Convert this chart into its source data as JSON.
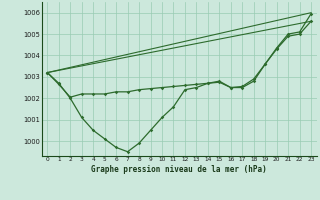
{
  "title": "Graphe pression niveau de la mer (hPa)",
  "background_color": "#cce8dc",
  "grid_color": "#99ccb3",
  "line_color": "#2d6b2d",
  "xlim": [
    -0.5,
    23.5
  ],
  "ylim": [
    999.3,
    1006.5
  ],
  "yticks": [
    1000,
    1001,
    1002,
    1003,
    1004,
    1005,
    1006
  ],
  "xticks": [
    0,
    1,
    2,
    3,
    4,
    5,
    6,
    7,
    8,
    9,
    10,
    11,
    12,
    13,
    14,
    15,
    16,
    17,
    18,
    19,
    20,
    21,
    22,
    23
  ],
  "line_deep": {
    "x": [
      0,
      1,
      2,
      3,
      4,
      5,
      6,
      7,
      8,
      9,
      10,
      11,
      12,
      13,
      14,
      15,
      16,
      17,
      18,
      19,
      20,
      21,
      22,
      23
    ],
    "y": [
      1003.2,
      1002.7,
      1002.0,
      1001.1,
      1000.5,
      1000.1,
      999.7,
      999.5,
      999.9,
      1000.5,
      1001.1,
      1001.6,
      1002.4,
      1002.5,
      1002.7,
      1002.8,
      1002.5,
      1002.5,
      1002.8,
      1003.6,
      1004.3,
      1004.9,
      1005.0,
      1005.6
    ]
  },
  "line_high": {
    "x": [
      0,
      1,
      2,
      3,
      4,
      5,
      6,
      7,
      8,
      9,
      10,
      11,
      12,
      13,
      14,
      15,
      16,
      17,
      18,
      19,
      20,
      21,
      22,
      23
    ],
    "y": [
      1003.2,
      1002.65,
      1002.05,
      1002.2,
      1002.2,
      1002.2,
      1002.3,
      1002.3,
      1002.4,
      1002.45,
      1002.5,
      1002.55,
      1002.6,
      1002.65,
      1002.7,
      1002.75,
      1002.5,
      1002.55,
      1002.9,
      1003.6,
      1004.35,
      1005.0,
      1005.1,
      1005.95
    ]
  },
  "line_straight1": {
    "x": [
      0,
      23
    ],
    "y": [
      1003.2,
      1006.0
    ]
  },
  "line_straight2": {
    "x": [
      0,
      23
    ],
    "y": [
      1003.2,
      1005.6
    ]
  },
  "line_upper": {
    "x": [
      10,
      23
    ],
    "y": [
      1002.4,
      1005.95
    ]
  }
}
